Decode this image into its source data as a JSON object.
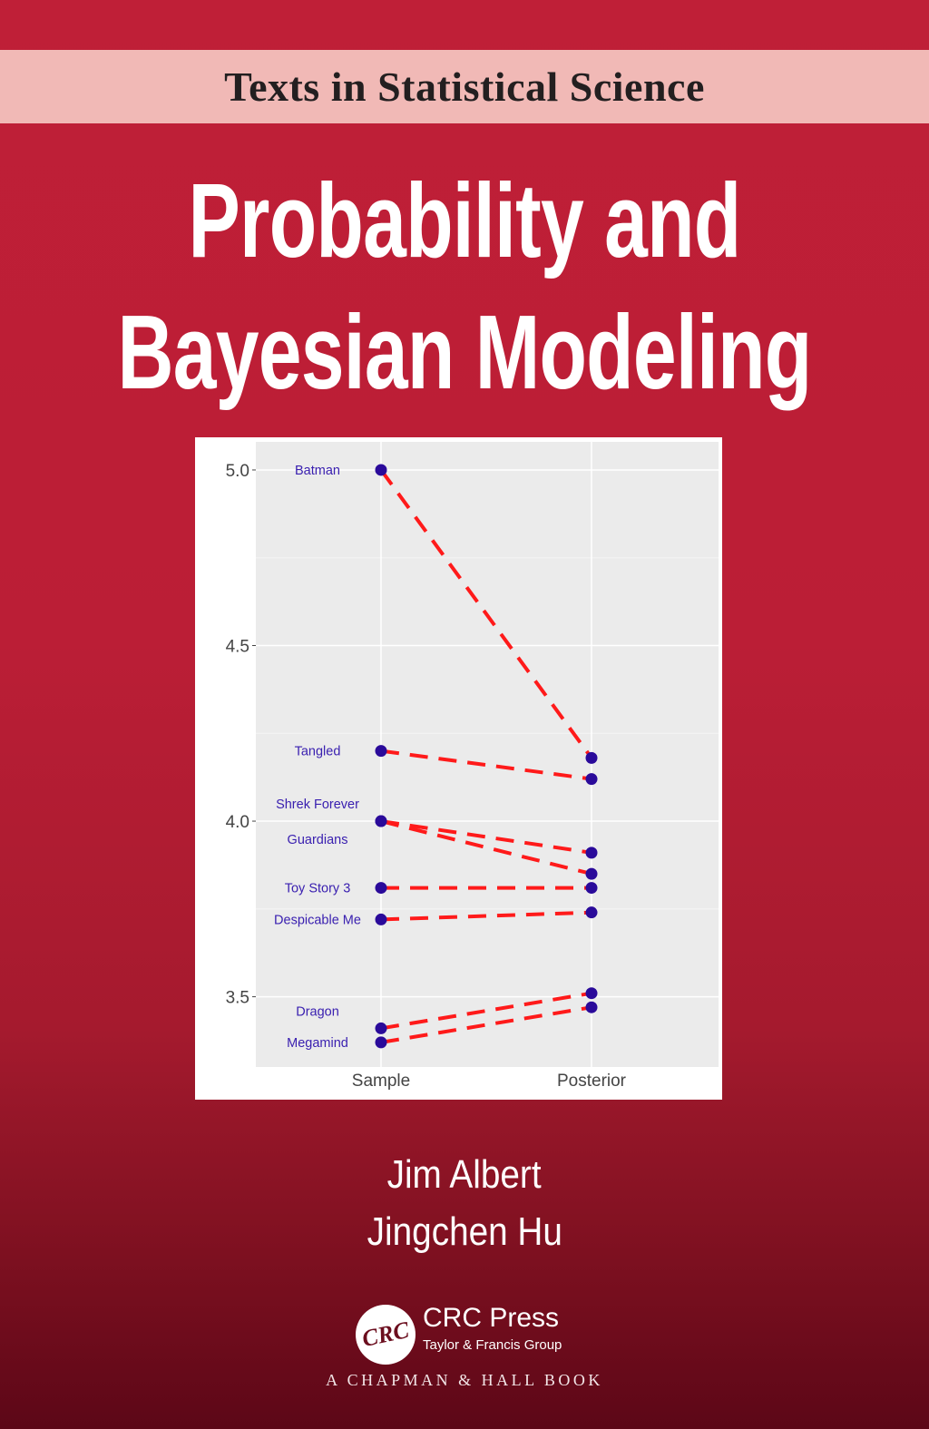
{
  "series_banner": "Texts in Statistical Science",
  "title_line1": "Probability and",
  "title_line2": "Bayesian Modeling",
  "authors": [
    "Jim Albert",
    "Jingchen Hu"
  ],
  "publisher": {
    "logo_text": "CRC",
    "name": "CRC Press",
    "group": "Taylor & Francis Group",
    "imprint": "A CHAPMAN & HALL BOOK"
  },
  "colors": {
    "background": "#bf1f37",
    "banner": "#f1b9b6",
    "line": "#ff1a1a",
    "point": "#2a0a9a",
    "label": "#3a20b0",
    "panel": "#ebebeb"
  },
  "chart_data": {
    "type": "line",
    "categories": [
      "Sample",
      "Posterior"
    ],
    "ylim": [
      3.3,
      5.08
    ],
    "yticks": [
      3.5,
      4.0,
      4.5,
      5.0
    ],
    "ytick_labels": [
      "3.5",
      "4.0",
      "4.5",
      "5.0"
    ],
    "grid": true,
    "line_style": "dashed",
    "series": [
      {
        "name": "Batman",
        "values": [
          5.0,
          4.18
        ]
      },
      {
        "name": "Tangled",
        "values": [
          4.2,
          4.12
        ]
      },
      {
        "name": "Shrek Forever",
        "values": [
          4.0,
          3.91
        ]
      },
      {
        "name": "Guardians",
        "values": [
          4.0,
          3.85
        ]
      },
      {
        "name": "Toy Story 3",
        "values": [
          3.81,
          3.81
        ]
      },
      {
        "name": "Despicable Me",
        "values": [
          3.72,
          3.74
        ]
      },
      {
        "name": "Dragon",
        "values": [
          3.41,
          3.51
        ]
      },
      {
        "name": "Megamind",
        "values": [
          3.37,
          3.47
        ]
      }
    ]
  }
}
